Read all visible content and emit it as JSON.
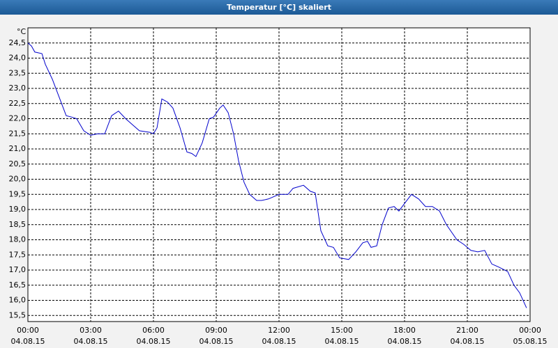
{
  "chart_data": {
    "type": "line",
    "title": "Temperatur [°C] skaliert",
    "y_unit": "°C",
    "x": [
      0,
      0.17,
      0.33,
      0.67,
      0.83,
      1.17,
      1.5,
      1.83,
      2.1,
      2.33,
      2.67,
      3.0,
      3.33,
      3.67,
      4.0,
      4.33,
      4.67,
      5.0,
      5.33,
      5.83,
      6.0,
      6.17,
      6.4,
      6.67,
      6.93,
      7.27,
      7.6,
      7.83,
      8.03,
      8.33,
      8.67,
      8.87,
      9.17,
      9.33,
      9.57,
      9.83,
      10.07,
      10.33,
      10.6,
      10.93,
      11.17,
      11.5,
      12.0,
      12.43,
      12.67,
      13.17,
      13.5,
      13.73,
      14.0,
      14.33,
      14.6,
      14.9,
      15.33,
      15.67,
      16.0,
      16.23,
      16.4,
      16.67,
      16.93,
      17.23,
      17.5,
      17.73,
      18.0,
      18.33,
      18.67,
      19.0,
      19.33,
      19.67,
      20.0,
      20.5,
      20.83,
      21.17,
      21.5,
      21.83,
      22.17,
      22.5,
      22.93,
      23.23,
      23.5,
      23.83
    ],
    "series": [
      {
        "name": "Temperatur",
        "color": "#0000cc",
        "values": [
          24.5,
          24.4,
          24.2,
          24.15,
          23.8,
          23.3,
          22.7,
          22.1,
          22.05,
          22.0,
          21.6,
          21.45,
          21.5,
          21.5,
          22.1,
          22.25,
          22.0,
          21.8,
          21.6,
          21.55,
          21.5,
          21.7,
          22.65,
          22.55,
          22.35,
          21.7,
          20.9,
          20.85,
          20.75,
          21.2,
          22.0,
          22.05,
          22.35,
          22.45,
          22.2,
          21.5,
          20.6,
          19.9,
          19.5,
          19.3,
          19.3,
          19.35,
          19.5,
          19.5,
          19.7,
          19.8,
          19.6,
          19.55,
          18.3,
          17.8,
          17.75,
          17.4,
          17.35,
          17.6,
          17.9,
          17.95,
          17.75,
          17.8,
          18.5,
          19.05,
          19.1,
          18.95,
          19.2,
          19.5,
          19.35,
          19.1,
          19.1,
          18.95,
          18.5,
          18.0,
          17.85,
          17.65,
          17.6,
          17.65,
          17.2,
          17.1,
          16.95,
          16.5,
          16.25,
          15.75
        ]
      }
    ],
    "xlim": [
      0,
      24
    ],
    "ylim": [
      15.3,
      25.0
    ],
    "xticks": [
      {
        "value": 0,
        "label": "00:00",
        "date": "04.08.15"
      },
      {
        "value": 3,
        "label": "03:00",
        "date": "04.08.15"
      },
      {
        "value": 6,
        "label": "06:00",
        "date": "04.08.15"
      },
      {
        "value": 9,
        "label": "09:00",
        "date": "04.08.15"
      },
      {
        "value": 12,
        "label": "12:00",
        "date": "04.08.15"
      },
      {
        "value": 15,
        "label": "15:00",
        "date": "04.08.15"
      },
      {
        "value": 18,
        "label": "18:00",
        "date": "04.08.15"
      },
      {
        "value": 21,
        "label": "21:00",
        "date": "04.08.15"
      },
      {
        "value": 24,
        "label": "00:00",
        "date": "05.08.15"
      }
    ],
    "yticks": [
      {
        "value": 15.5,
        "label": "15,5"
      },
      {
        "value": 16,
        "label": "16,0"
      },
      {
        "value": 16.5,
        "label": "16,5"
      },
      {
        "value": 17,
        "label": "17,0"
      },
      {
        "value": 17.5,
        "label": "17,5"
      },
      {
        "value": 18,
        "label": "18,0"
      },
      {
        "value": 18.5,
        "label": "18,5"
      },
      {
        "value": 19,
        "label": "19,0"
      },
      {
        "value": 19.5,
        "label": "19,5"
      },
      {
        "value": 20,
        "label": "20,0"
      },
      {
        "value": 20.5,
        "label": "20,5"
      },
      {
        "value": 21,
        "label": "21,0"
      },
      {
        "value": 21.5,
        "label": "21,5"
      },
      {
        "value": 22,
        "label": "22,0"
      },
      {
        "value": 22.5,
        "label": "22,5"
      },
      {
        "value": 23,
        "label": "23,0"
      },
      {
        "value": 23.5,
        "label": "23,5"
      },
      {
        "value": 24,
        "label": "24,0"
      },
      {
        "value": 24.5,
        "label": "24,5"
      }
    ],
    "grid": true
  }
}
